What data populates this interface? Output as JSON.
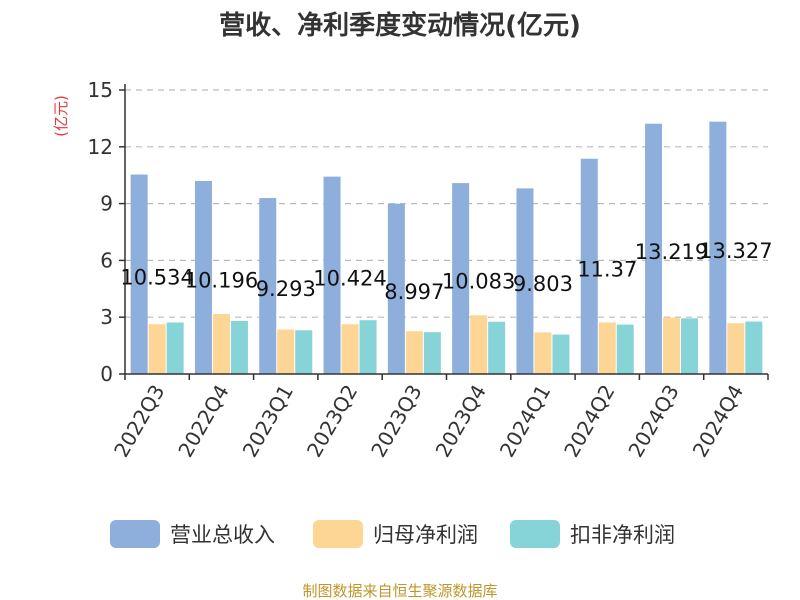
{
  "chart_data": {
    "type": "bar",
    "title": "营收、净利季度变动情况(亿元)",
    "ylabel": "(亿元)",
    "ylim": [
      0,
      15
    ],
    "yticks": [
      0,
      3,
      6,
      9,
      12,
      15
    ],
    "grid": true,
    "legend_position": "bottom",
    "categories": [
      "2022Q3",
      "2022Q4",
      "2023Q1",
      "2023Q2",
      "2023Q3",
      "2023Q4",
      "2024Q1",
      "2024Q2",
      "2024Q3",
      "2024Q4"
    ],
    "series": [
      {
        "name": "营业总收入",
        "color": "#8eaedb",
        "values": [
          10.534,
          10.196,
          9.293,
          10.424,
          8.997,
          10.083,
          9.803,
          11.37,
          13.219,
          13.327
        ],
        "labels": [
          "10.534",
          "10.196",
          "9.293",
          "10.424",
          "8.997",
          "10.083",
          "9.803",
          "11.37",
          "13.219",
          "13.327"
        ]
      },
      {
        "name": "归母净利润",
        "color": "#fdd595",
        "values": [
          2.63,
          3.17,
          2.35,
          2.63,
          2.26,
          3.1,
          2.2,
          2.72,
          2.98,
          2.68
        ]
      },
      {
        "name": "扣非净利润",
        "color": "#86d4d7",
        "values": [
          2.72,
          2.8,
          2.31,
          2.84,
          2.21,
          2.76,
          2.08,
          2.61,
          2.94,
          2.77
        ]
      }
    ],
    "source": "制图数据来自恒生聚源数据库"
  }
}
